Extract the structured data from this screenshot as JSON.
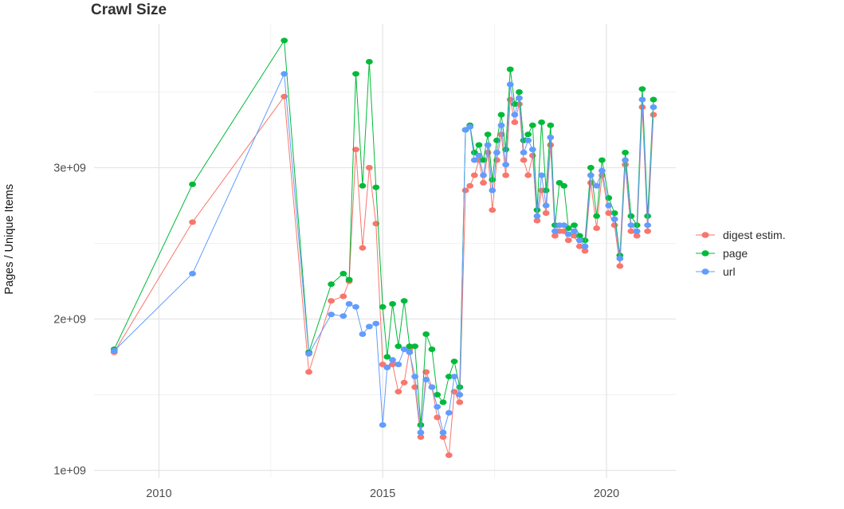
{
  "chart_data": {
    "type": "line",
    "title": "Crawl Size",
    "xlabel": "",
    "ylabel": "Pages / Unique Items",
    "y_unit": "1e9",
    "xlim": [
      2008.55,
      2021.55
    ],
    "ylim": [
      0.95,
      3.95
    ],
    "grid": true,
    "legend_position": "right",
    "x_ticks": [
      {
        "value": 2010,
        "label": "2010"
      },
      {
        "value": 2015,
        "label": "2015"
      },
      {
        "value": 2020,
        "label": "2020"
      }
    ],
    "y_ticks": [
      {
        "value": 1,
        "label": "1e+09"
      },
      {
        "value": 2,
        "label": "2e+09"
      },
      {
        "value": 3,
        "label": "3e+09"
      }
    ],
    "x_minor": [
      2012.5,
      2017.5
    ],
    "y_minor": [
      1.5,
      2.5,
      3.5
    ],
    "x": [
      2009.0,
      2010.75,
      2012.8,
      2013.35,
      2013.85,
      2014.12,
      2014.25,
      2014.4,
      2014.55,
      2014.7,
      2014.85,
      2015.0,
      2015.1,
      2015.22,
      2015.35,
      2015.48,
      2015.6,
      2015.72,
      2015.85,
      2015.97,
      2016.1,
      2016.22,
      2016.35,
      2016.48,
      2016.6,
      2016.72,
      2016.85,
      2016.95,
      2017.05,
      2017.15,
      2017.25,
      2017.35,
      2017.45,
      2017.55,
      2017.65,
      2017.75,
      2017.85,
      2017.95,
      2018.05,
      2018.15,
      2018.25,
      2018.35,
      2018.45,
      2018.55,
      2018.65,
      2018.75,
      2018.85,
      2018.95,
      2019.05,
      2019.15,
      2019.28,
      2019.4,
      2019.52,
      2019.65,
      2019.78,
      2019.9,
      2020.05,
      2020.18,
      2020.3,
      2020.42,
      2020.55,
      2020.68,
      2020.8,
      2020.92,
      2021.05
    ],
    "series": [
      {
        "name": "digest estim.",
        "color": "#F8766D",
        "values": [
          1.78,
          2.64,
          3.47,
          1.65,
          2.12,
          2.15,
          2.25,
          3.12,
          2.47,
          3.0,
          2.63,
          1.7,
          1.68,
          1.7,
          1.52,
          1.58,
          1.8,
          1.55,
          1.22,
          1.65,
          1.55,
          1.35,
          1.22,
          1.1,
          1.52,
          1.45,
          2.85,
          2.88,
          2.95,
          3.05,
          2.9,
          3.1,
          2.72,
          3.05,
          3.22,
          2.95,
          3.45,
          3.3,
          3.42,
          3.05,
          2.95,
          3.08,
          2.65,
          2.85,
          2.7,
          3.15,
          2.55,
          2.58,
          2.58,
          2.52,
          2.55,
          2.48,
          2.45,
          2.9,
          2.6,
          2.95,
          2.7,
          2.62,
          2.35,
          3.02,
          2.58,
          2.55,
          3.4,
          2.58,
          3.35
        ]
      },
      {
        "name": "page",
        "color": "#00BA38",
        "values": [
          1.8,
          2.89,
          3.84,
          1.78,
          2.23,
          2.3,
          2.26,
          3.62,
          2.88,
          3.7,
          2.87,
          2.08,
          1.75,
          2.1,
          1.82,
          2.12,
          1.82,
          1.82,
          1.3,
          1.9,
          1.8,
          1.5,
          1.45,
          1.62,
          1.72,
          1.55,
          3.25,
          3.28,
          3.1,
          3.15,
          3.05,
          3.22,
          2.92,
          3.18,
          3.35,
          3.12,
          3.65,
          3.42,
          3.5,
          3.18,
          3.22,
          3.28,
          2.72,
          3.3,
          2.85,
          3.28,
          2.62,
          2.9,
          2.88,
          2.6,
          2.62,
          2.55,
          2.52,
          3.0,
          2.68,
          3.05,
          2.8,
          2.7,
          2.42,
          3.1,
          2.68,
          2.62,
          3.52,
          2.68,
          3.45
        ]
      },
      {
        "name": "url",
        "color": "#619CFF",
        "values": [
          1.79,
          2.3,
          3.62,
          1.77,
          2.03,
          2.02,
          2.1,
          2.08,
          1.9,
          1.95,
          1.97,
          1.3,
          1.68,
          1.73,
          1.7,
          1.8,
          1.78,
          1.62,
          1.25,
          1.6,
          1.55,
          1.42,
          1.25,
          1.38,
          1.62,
          1.5,
          3.25,
          3.27,
          3.05,
          3.08,
          2.95,
          3.15,
          2.85,
          3.1,
          3.28,
          3.02,
          3.55,
          3.35,
          3.46,
          3.1,
          3.18,
          3.12,
          2.68,
          2.95,
          2.75,
          3.2,
          2.58,
          2.62,
          2.62,
          2.56,
          2.58,
          2.52,
          2.48,
          2.95,
          2.88,
          2.98,
          2.75,
          2.66,
          2.4,
          3.05,
          2.62,
          2.58,
          3.45,
          2.62,
          3.4
        ]
      }
    ]
  },
  "legend": {
    "items": [
      {
        "label": "digest estim.",
        "color": "#F8766D"
      },
      {
        "label": "page",
        "color": "#00BA38"
      },
      {
        "label": "url",
        "color": "#619CFF"
      }
    ]
  },
  "colors": {
    "grid_major": "#e5e5e5",
    "grid_minor": "#f2f2f2",
    "axis_text": "#4d4d4d",
    "background": "#ffffff"
  }
}
